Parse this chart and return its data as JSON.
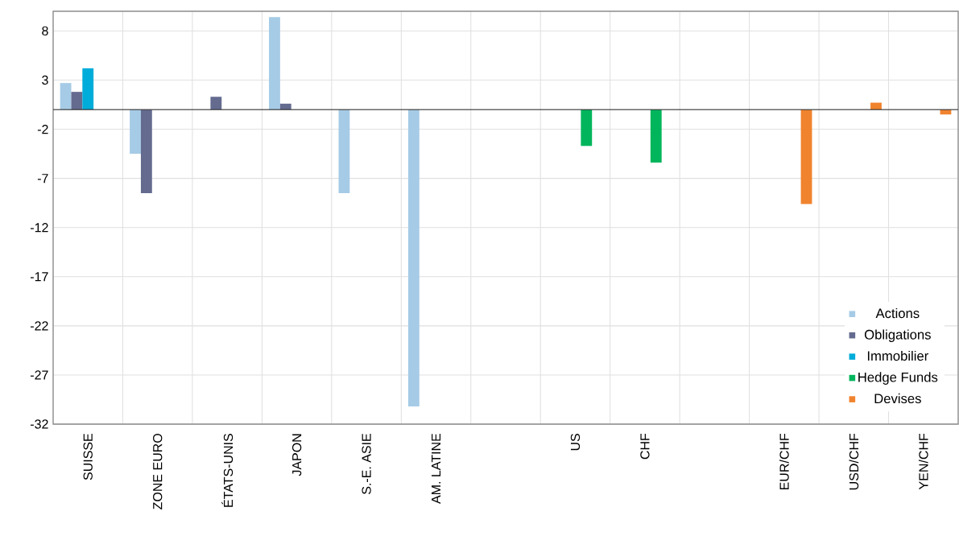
{
  "chart_data": {
    "type": "bar",
    "categories": [
      "SUISSE",
      "ZONE EURO",
      "ÉTATS-UNIS",
      "JAPON",
      "S.-E. ASIE",
      "AM. LATINE",
      null,
      "US",
      "CHF",
      null,
      "EUR/CHF",
      "USD/CHF",
      "YEN/CHF"
    ],
    "series": [
      {
        "name": "Actions",
        "color": "#a6cbe6",
        "values": [
          2.7,
          -4.5,
          null,
          9.4,
          -8.5,
          -30.2,
          null,
          null,
          null,
          null,
          null,
          null,
          null
        ]
      },
      {
        "name": "Obligations",
        "color": "#646b8f",
        "values": [
          1.8,
          -8.5,
          1.3,
          0.6,
          null,
          null,
          null,
          null,
          null,
          null,
          null,
          null,
          null
        ]
      },
      {
        "name": "Immobilier",
        "color": "#00acd9",
        "values": [
          4.2,
          null,
          null,
          null,
          null,
          null,
          null,
          null,
          null,
          null,
          null,
          null,
          null
        ]
      },
      {
        "name": "Hedge Funds",
        "color": "#00b55c",
        "values": [
          null,
          null,
          null,
          null,
          null,
          null,
          null,
          -3.7,
          -5.4,
          null,
          null,
          null,
          null
        ]
      },
      {
        "name": "Devises",
        "color": "#f0832e",
        "values": [
          null,
          null,
          null,
          null,
          null,
          null,
          null,
          null,
          null,
          null,
          -9.6,
          0.7,
          -0.5
        ]
      }
    ],
    "ylim": [
      -32,
      10
    ],
    "yticks": [
      8,
      3,
      -2,
      -7,
      -12,
      -17,
      -22,
      -27,
      -32
    ],
    "grid": true,
    "legend": "bottom right"
  }
}
